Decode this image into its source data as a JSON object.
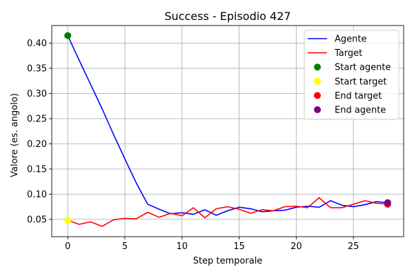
{
  "chart_data": {
    "type": "line",
    "title": "Success - Episodio 427",
    "xlabel": "Step temporale",
    "ylabel": "Valore (es. angolo)",
    "xlim": [
      -1.4,
      29.4
    ],
    "ylim": [
      0.0155,
      0.435
    ],
    "xticks": [
      0,
      5,
      10,
      15,
      20,
      25
    ],
    "yticks": [
      0.05,
      0.1,
      0.15,
      0.2,
      0.25,
      0.3,
      0.35,
      0.4
    ],
    "xtick_labels": [
      "0",
      "5",
      "10",
      "15",
      "20",
      "25"
    ],
    "ytick_labels": [
      "0.05",
      "0.10",
      "0.15",
      "0.20",
      "0.25",
      "0.30",
      "0.35",
      "0.40"
    ],
    "grid": true,
    "legend_position": "top-right",
    "series": [
      {
        "name": "Agente",
        "kind": "line",
        "color": "#0000ff",
        "x": [
          0,
          1,
          2,
          3,
          4,
          5,
          6,
          7,
          8,
          9,
          10,
          11,
          12,
          13,
          14,
          15,
          16,
          17,
          18,
          19,
          20,
          21,
          22,
          23,
          24,
          25,
          26,
          27,
          28
        ],
        "y": [
          0.415,
          0.366,
          0.318,
          0.27,
          0.219,
          0.17,
          0.122,
          0.08,
          0.07,
          0.061,
          0.063,
          0.06,
          0.069,
          0.058,
          0.067,
          0.074,
          0.071,
          0.065,
          0.067,
          0.068,
          0.074,
          0.076,
          0.074,
          0.087,
          0.078,
          0.075,
          0.079,
          0.085,
          0.083
        ]
      },
      {
        "name": "Target",
        "kind": "line",
        "color": "#ff0000",
        "x": [
          0,
          1,
          2,
          3,
          4,
          5,
          6,
          7,
          8,
          9,
          10,
          11,
          12,
          13,
          14,
          15,
          16,
          17,
          18,
          19,
          20,
          21,
          22,
          23,
          24,
          25,
          26,
          27,
          28
        ],
        "y": [
          0.048,
          0.04,
          0.045,
          0.036,
          0.049,
          0.052,
          0.051,
          0.064,
          0.054,
          0.062,
          0.057,
          0.073,
          0.053,
          0.071,
          0.075,
          0.07,
          0.062,
          0.069,
          0.067,
          0.075,
          0.076,
          0.073,
          0.093,
          0.073,
          0.073,
          0.08,
          0.087,
          0.082,
          0.08
        ]
      },
      {
        "name": "Start agente",
        "kind": "point",
        "color": "#008000",
        "x": [
          0
        ],
        "y": [
          0.415
        ]
      },
      {
        "name": "Start target",
        "kind": "point",
        "color": "#ffff00",
        "x": [
          0
        ],
        "y": [
          0.048
        ]
      },
      {
        "name": "End target",
        "kind": "point",
        "color": "#ff0000",
        "x": [
          28
        ],
        "y": [
          0.08
        ]
      },
      {
        "name": "End agente",
        "kind": "point",
        "color": "#800080",
        "x": [
          28
        ],
        "y": [
          0.083
        ]
      }
    ]
  }
}
